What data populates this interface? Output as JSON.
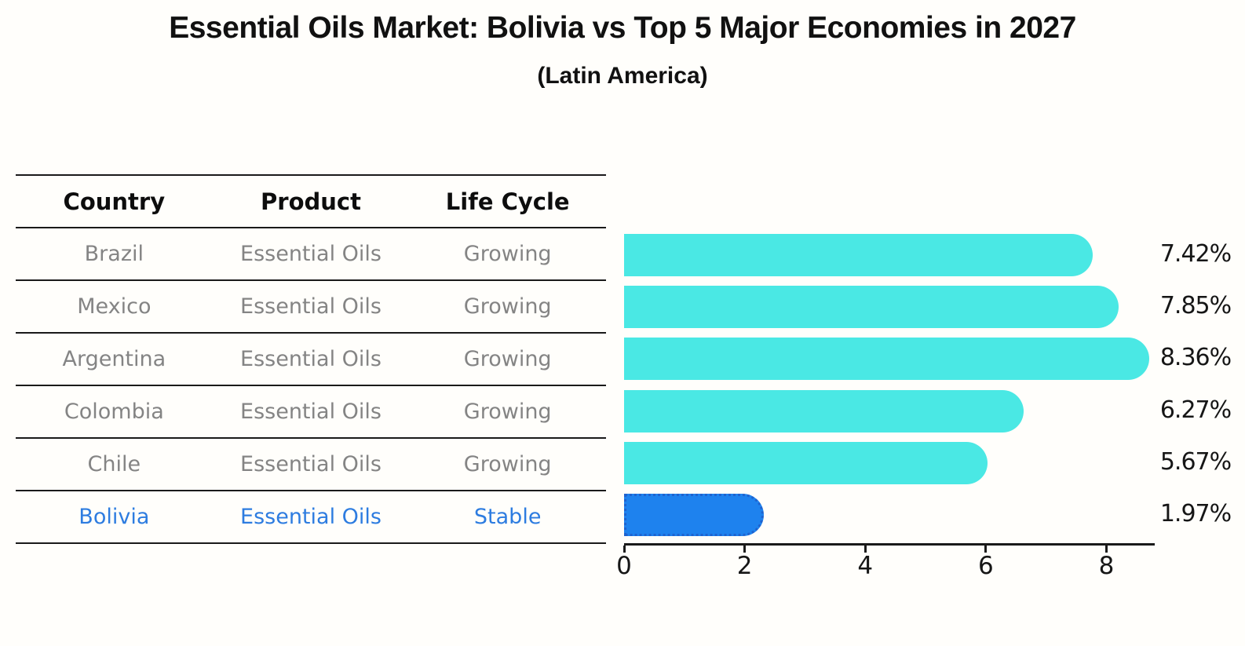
{
  "title": "Essential Oils Market: Bolivia vs Top 5 Major Economies in 2027",
  "subtitle": "(Latin America)",
  "table": {
    "headers": [
      "Country",
      "Product",
      "Life Cycle"
    ],
    "rows": [
      {
        "country": "Brazil",
        "product": "Essential Oils",
        "life_cycle": "Growing",
        "highlight": false
      },
      {
        "country": "Mexico",
        "product": "Essential Oils",
        "life_cycle": "Growing",
        "highlight": false
      },
      {
        "country": "Argentina",
        "product": "Essential Oils",
        "life_cycle": "Growing",
        "highlight": false
      },
      {
        "country": "Colombia",
        "product": "Essential Oils",
        "life_cycle": "Growing",
        "highlight": false
      },
      {
        "country": "Chile",
        "product": "Essential Oils",
        "life_cycle": "Growing",
        "highlight": false
      },
      {
        "country": "Bolivia",
        "product": "Essential Oils",
        "life_cycle": "Stable",
        "highlight": true
      }
    ]
  },
  "chart_data": {
    "type": "bar",
    "orientation": "horizontal",
    "title": "Essential Oils Market: Bolivia vs Top 5 Major Economies in 2027",
    "subtitle": "(Latin America)",
    "categories": [
      "Brazil",
      "Mexico",
      "Argentina",
      "Colombia",
      "Chile",
      "Bolivia"
    ],
    "values": [
      7.42,
      7.85,
      8.36,
      6.27,
      5.67,
      1.97
    ],
    "labels": [
      "7.42%",
      "7.85%",
      "8.36%",
      "6.27%",
      "5.67%",
      "1.97%"
    ],
    "xlim": [
      0,
      8.8
    ],
    "x_ticks": [
      "0",
      "2",
      "4",
      "6",
      "8"
    ],
    "grid": false,
    "legend": false,
    "highlight_index": 5
  },
  "colors": {
    "bar": "#4ae8e4",
    "highlight_bar": "#1e82ee",
    "highlight_border": "#1f63cf",
    "highlight_text": "#2d7ce0",
    "row_text": "#848484",
    "header_text": "#0d0d0d",
    "axis": "#1a1a1a",
    "background": "#fffefb"
  }
}
